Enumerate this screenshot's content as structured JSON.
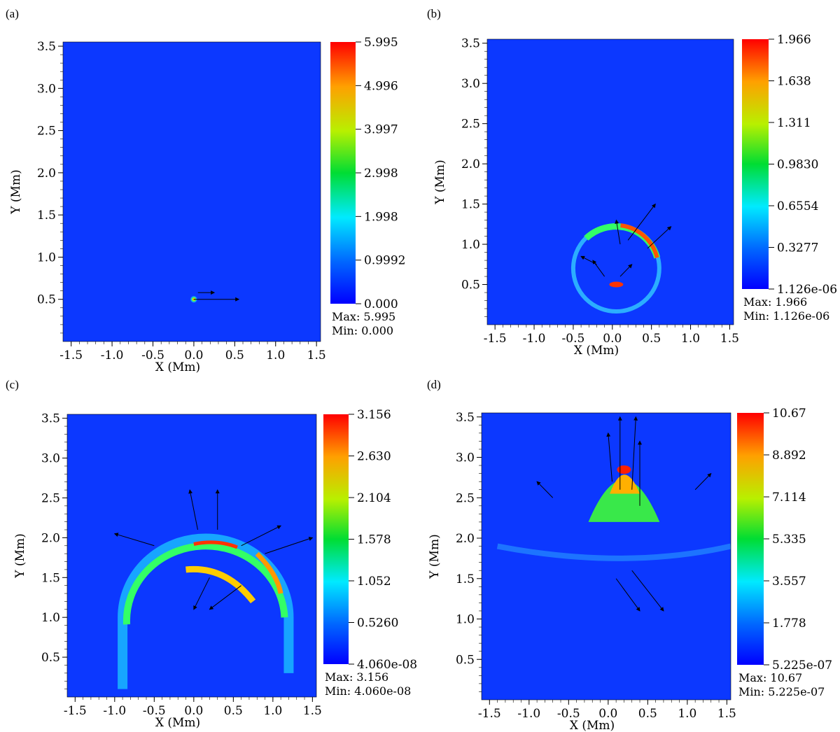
{
  "figure": {
    "panels": [
      {
        "label": "(a)",
        "cb_ticks": [
          "5.995",
          "4.996",
          "3.997",
          "2.998",
          "1.998",
          "0.9992",
          "0.000"
        ],
        "max_label": "Max:",
        "max": "5.995",
        "min_label": "Min:",
        "min": "0.000"
      },
      {
        "label": "(b)",
        "cb_ticks": [
          "1.966",
          "1.638",
          "1.311",
          "0.9830",
          "0.6554",
          "0.3277",
          "1.126e-06"
        ],
        "max_label": "Max:",
        "max": "1.966",
        "min_label": "Min:",
        "min": "1.126e-06"
      },
      {
        "label": "(c)",
        "cb_ticks": [
          "3.156",
          "2.630",
          "2.104",
          "1.578",
          "1.052",
          "0.5260",
          "4.060e-08"
        ],
        "max_label": "Max:",
        "max": "3.156",
        "min_label": "Min:",
        "min": "4.060e-08"
      },
      {
        "label": "(d)",
        "cb_ticks": [
          "10.67",
          "8.892",
          "7.114",
          "5.335",
          "3.557",
          "1.778",
          "5.225e-07"
        ],
        "max_label": "Max:",
        "max": "10.67",
        "min_label": "Min:",
        "min": "5.225e-07"
      }
    ]
  },
  "chart_data": [
    {
      "type": "heatmap",
      "panel": "(a)",
      "xlabel": "X (Mm)",
      "ylabel": "Y (Mm)",
      "xlim": [
        -1.6,
        1.55
      ],
      "ylim": [
        0,
        3.55
      ],
      "xticks": [
        "-1.5",
        "-1.0",
        "-0.5",
        "0.0",
        "0.5",
        "1.0",
        "1.5"
      ],
      "yticks": [
        "0.5",
        "1.0",
        "1.5",
        "2.0",
        "2.5",
        "3.0",
        "3.5"
      ],
      "colorbar_range": [
        0.0,
        5.995
      ],
      "features": [
        {
          "shape": "blob",
          "x": 0.0,
          "y": 0.5,
          "peak": 5.995
        }
      ],
      "vectors": [
        [
          0.0,
          0.5,
          0.55,
          0.0
        ],
        [
          0.05,
          0.58,
          0.2,
          0.0
        ]
      ]
    },
    {
      "type": "heatmap",
      "panel": "(b)",
      "xlabel": "X (Mm)",
      "ylabel": "Y (Mm)",
      "xlim": [
        -1.6,
        1.55
      ],
      "ylim": [
        0,
        3.55
      ],
      "xticks": [
        "-1.5",
        "-1.0",
        "-0.5",
        "0.0",
        "0.5",
        "1.0",
        "1.5"
      ],
      "yticks": [
        "0.5",
        "1.0",
        "1.5",
        "2.0",
        "2.5",
        "3.0",
        "3.5"
      ],
      "colorbar_range": [
        1.126e-06,
        1.966
      ],
      "features": [
        {
          "shape": "ring",
          "x": 0.05,
          "y": 0.7,
          "radius": 0.55,
          "peak": 1.966
        }
      ],
      "vectors": [
        [
          0.2,
          1.05,
          0.35,
          0.45
        ],
        [
          0.45,
          0.95,
          0.3,
          0.27
        ],
        [
          0.1,
          1.0,
          -0.05,
          0.3
        ],
        [
          -0.2,
          0.75,
          -0.2,
          0.1
        ],
        [
          -0.1,
          0.6,
          -0.15,
          0.2
        ],
        [
          0.1,
          0.6,
          0.15,
          0.15
        ]
      ]
    },
    {
      "type": "heatmap",
      "panel": "(c)",
      "xlabel": "X (Mm)",
      "ylabel": "Y (Mm)",
      "xlim": [
        -1.6,
        1.55
      ],
      "ylim": [
        0,
        3.55
      ],
      "xticks": [
        "-1.5",
        "-1.0",
        "-0.5",
        "0.0",
        "0.5",
        "1.0",
        "1.5"
      ],
      "yticks": [
        "0.5",
        "1.0",
        "1.5",
        "2.0",
        "2.5",
        "3.0",
        "3.5"
      ],
      "colorbar_range": [
        4.06e-08,
        3.156
      ],
      "features": [
        {
          "shape": "arc",
          "x": 0.15,
          "y": 1.0,
          "radius": 1.05,
          "peak": 3.156
        }
      ],
      "vectors": [
        [
          0.05,
          2.1,
          -0.1,
          0.5
        ],
        [
          0.3,
          2.1,
          0.0,
          0.5
        ],
        [
          0.9,
          1.8,
          0.6,
          0.2
        ],
        [
          0.6,
          1.9,
          0.5,
          0.25
        ],
        [
          -0.5,
          1.9,
          -0.5,
          0.15
        ],
        [
          0.2,
          1.5,
          -0.2,
          -0.4
        ],
        [
          0.6,
          1.4,
          -0.4,
          -0.3
        ]
      ]
    },
    {
      "type": "heatmap",
      "panel": "(d)",
      "xlabel": "X (Mm)",
      "ylabel": "Y (Mm)",
      "xlim": [
        -1.6,
        1.55
      ],
      "ylim": [
        0,
        3.55
      ],
      "xticks": [
        "-1.5",
        "-1.0",
        "-0.5",
        "0.0",
        "0.5",
        "1.0",
        "1.5"
      ],
      "yticks": [
        "0.5",
        "1.0",
        "1.5",
        "2.0",
        "2.5",
        "3.0",
        "3.5"
      ],
      "colorbar_range": [
        5.225e-07,
        10.67
      ],
      "features": [
        {
          "shape": "dome",
          "x": 0.2,
          "y": 2.2,
          "height": 0.7,
          "peak": 10.67
        }
      ],
      "vectors": [
        [
          0.15,
          2.6,
          0.0,
          0.9
        ],
        [
          0.3,
          2.6,
          0.05,
          0.9
        ],
        [
          0.05,
          2.7,
          -0.05,
          0.6
        ],
        [
          0.4,
          2.4,
          0.0,
          0.8
        ],
        [
          0.3,
          1.6,
          0.4,
          -0.5
        ],
        [
          0.1,
          1.5,
          0.3,
          -0.4
        ],
        [
          -0.7,
          2.5,
          -0.2,
          0.2
        ],
        [
          1.1,
          2.6,
          0.2,
          0.2
        ]
      ]
    }
  ]
}
